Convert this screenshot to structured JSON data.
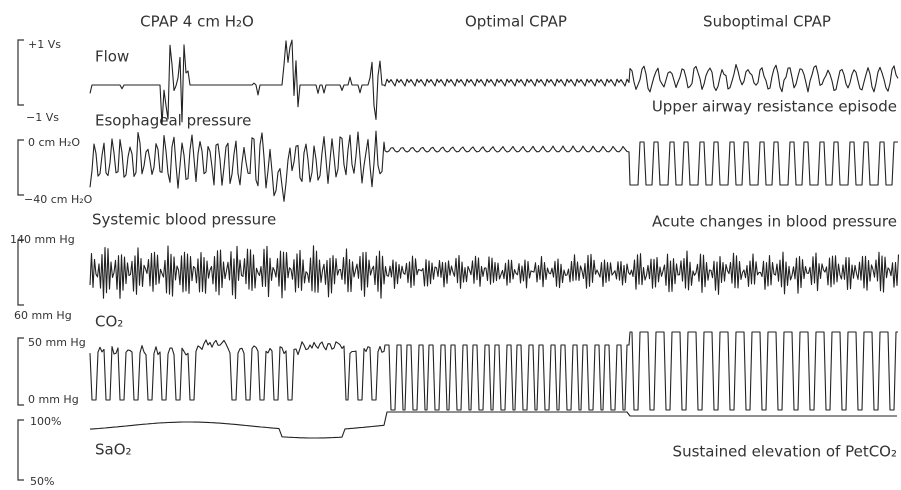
{
  "headers": [
    "CPAP 4 cm H₂O",
    "Optimal CPAP",
    "Suboptimal CPAP"
  ],
  "channels": [
    {
      "label": "Flow",
      "scale_top": "+1 Vs",
      "scale_bottom": "−1 Vs"
    },
    {
      "label": "Esophageal pressure",
      "scale_top": "0 cm H₂O",
      "scale_bottom": "−40 cm H₂O"
    },
    {
      "label": "Systemic blood pressure",
      "scale_top": "140 mm Hg",
      "scale_bottom": "60 mm Hg"
    },
    {
      "label": "CO₂",
      "scale_top": "50 mm Hg",
      "scale_bottom": "0 mm Hg"
    },
    {
      "label": "SaO₂",
      "scale_top": "100%",
      "scale_bottom": "50%"
    }
  ],
  "annotations": [
    "Upper airway resistance episode",
    "Acute changes in blood pressure",
    "Sustained elevation of PetCO₂"
  ]
}
